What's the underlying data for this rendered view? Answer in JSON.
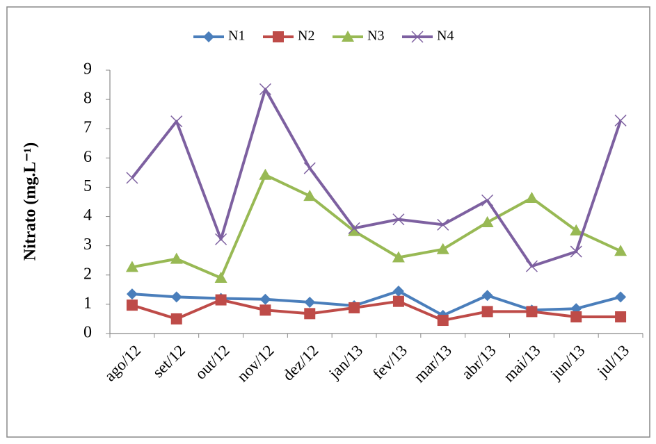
{
  "chart_data": {
    "type": "line",
    "y_label": "Nitrato (mg.L⁻¹)",
    "categories": [
      "ago/12",
      "set/12",
      "out/12",
      "nov/12",
      "dez/12",
      "jan/13",
      "fev/13",
      "mar/13",
      "abr/13",
      "mai/13",
      "jun/13",
      "jul/13"
    ],
    "series": [
      {
        "name": "N1",
        "color": "#4a7ebb",
        "marker": "diamond",
        "values": [
          1.35,
          1.25,
          1.2,
          1.17,
          1.07,
          0.95,
          1.45,
          0.62,
          1.3,
          0.8,
          0.85,
          1.25
        ]
      },
      {
        "name": "N2",
        "color": "#be4b48",
        "marker": "square",
        "values": [
          0.97,
          0.5,
          1.15,
          0.8,
          0.68,
          0.88,
          1.1,
          0.45,
          0.75,
          0.75,
          0.57,
          0.57
        ]
      },
      {
        "name": "N3",
        "color": "#98b954",
        "marker": "triangle",
        "values": [
          2.27,
          2.55,
          1.9,
          5.42,
          4.7,
          3.5,
          2.6,
          2.88,
          3.8,
          4.63,
          3.52,
          2.82
        ]
      },
      {
        "name": "N4",
        "color": "#7d60a0",
        "marker": "x",
        "values": [
          5.32,
          7.25,
          3.22,
          8.35,
          5.65,
          3.6,
          3.9,
          3.72,
          4.55,
          2.3,
          2.8,
          7.28
        ]
      }
    ],
    "ylim": [
      0,
      9
    ],
    "yticks": [
      0,
      1,
      2,
      3,
      4,
      5,
      6,
      7,
      8,
      9
    ],
    "grid": false,
    "legend": "top"
  }
}
